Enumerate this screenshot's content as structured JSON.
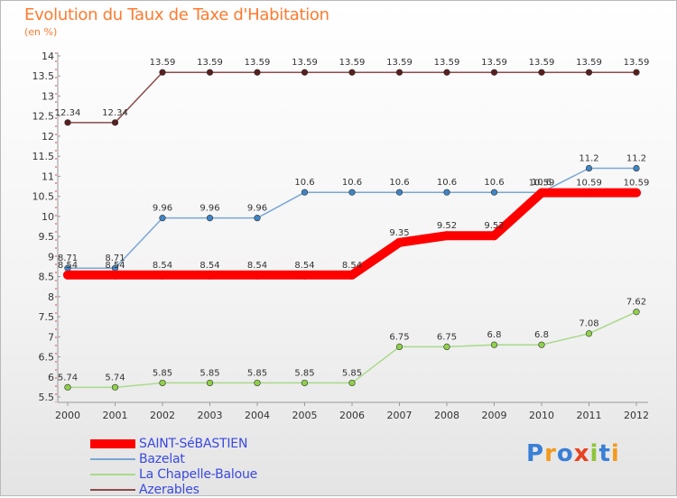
{
  "title": "Evolution du Taux de Taxe d'Habitation",
  "subtitle": "(en %)",
  "logo": "Proxiti",
  "chart_data": {
    "type": "line",
    "categories": [
      "2000",
      "2001",
      "2002",
      "2003",
      "2004",
      "2005",
      "2006",
      "2007",
      "2008",
      "2009",
      "2010",
      "2011",
      "2012"
    ],
    "ylim": [
      5.5,
      14
    ],
    "yticks": [
      "5.5",
      "6",
      "6.5",
      "7",
      "7.5",
      "8",
      "8.5",
      "9",
      "9.5",
      "10",
      "10.5",
      "11",
      "11.5",
      "12",
      "12.5",
      "13",
      "13.5",
      "14"
    ],
    "grid": false,
    "legend_position": "bottom-left",
    "series": [
      {
        "name": "SAINT-SéBASTIEN",
        "color": "#ff0000",
        "point_color": "#ff0000",
        "values": [
          8.54,
          8.54,
          8.54,
          8.54,
          8.54,
          8.54,
          8.54,
          9.35,
          9.52,
          9.52,
          10.59,
          10.59,
          10.59
        ]
      },
      {
        "name": "Bazelat",
        "color": "#7aa7d4",
        "point_color": "#3f85c6",
        "values": [
          8.71,
          8.71,
          9.96,
          9.96,
          9.96,
          10.6,
          10.6,
          10.6,
          10.6,
          10.6,
          10.6,
          11.2,
          11.2
        ]
      },
      {
        "name": "La Chapelle-Baloue",
        "color": "#a9d98a",
        "point_color": "#8fd14a",
        "values": [
          5.74,
          5.74,
          5.85,
          5.85,
          5.85,
          5.85,
          5.85,
          6.75,
          6.75,
          6.8,
          6.8,
          7.08,
          7.62
        ]
      },
      {
        "name": "Azerables",
        "color": "#8b4a4a",
        "point_color": "#5a1e1e",
        "values": [
          12.34,
          12.34,
          13.59,
          13.59,
          13.59,
          13.59,
          13.59,
          13.59,
          13.59,
          13.59,
          13.59,
          13.59,
          13.59
        ]
      }
    ],
    "data_labels": [
      [
        "8.54",
        "8.54",
        "8.54",
        "8.54",
        "8.54",
        "8.54",
        "8.54",
        "9.35",
        "9.52",
        "9.52",
        "10.59",
        "10.59",
        "10.59"
      ],
      [
        "8.71",
        "8.71",
        "9.96",
        "9.96",
        "9.96",
        "10.6",
        "10.6",
        "10.6",
        "10.6",
        "10.6",
        "10.6",
        "11.2",
        "11.2"
      ],
      [
        "5.74",
        "5.74",
        "5.85",
        "5.85",
        "5.85",
        "5.85",
        "5.85",
        "6.75",
        "6.75",
        "6.8",
        "6.8",
        "7.08",
        "7.62"
      ],
      [
        "12.34",
        "12.34",
        "13.59",
        "13.59",
        "13.59",
        "13.59",
        "13.59",
        "13.59",
        "13.59",
        "13.59",
        "13.59",
        "13.59",
        "13.59"
      ]
    ]
  }
}
